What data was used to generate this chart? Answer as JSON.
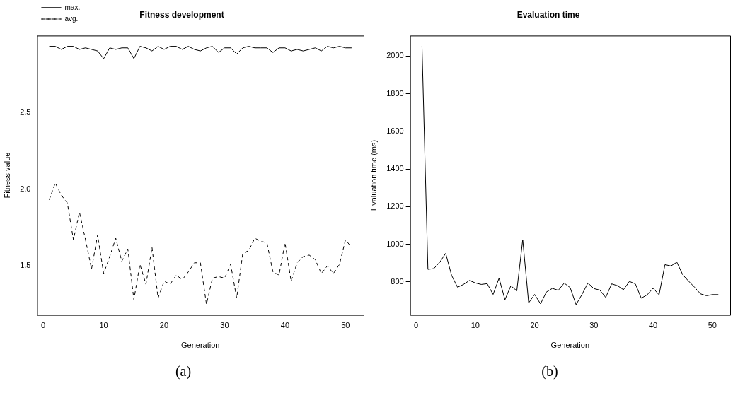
{
  "chart_data": [
    {
      "type": "line",
      "title": "Fitness development",
      "xlabel": "Generation",
      "ylabel": "Fitness value",
      "annotations": [
        "(a)"
      ],
      "x": [
        1,
        2,
        3,
        4,
        5,
        6,
        7,
        8,
        9,
        10,
        11,
        12,
        13,
        14,
        15,
        16,
        17,
        18,
        19,
        20,
        21,
        22,
        23,
        24,
        25,
        26,
        27,
        28,
        29,
        30,
        31,
        32,
        33,
        34,
        35,
        36,
        37,
        38,
        39,
        40,
        41,
        42,
        43,
        44,
        45,
        46,
        47,
        48,
        49,
        50,
        51
      ],
      "series": [
        {
          "name": "max.",
          "color": "#000000",
          "line_style": "solid",
          "values": [
            2.93,
            2.93,
            2.91,
            2.93,
            2.93,
            2.91,
            2.92,
            2.91,
            2.9,
            2.85,
            2.92,
            2.91,
            2.92,
            2.92,
            2.85,
            2.93,
            2.92,
            2.9,
            2.93,
            2.91,
            2.93,
            2.93,
            2.91,
            2.93,
            2.91,
            2.9,
            2.92,
            2.93,
            2.89,
            2.92,
            2.92,
            2.88,
            2.92,
            2.93,
            2.92,
            2.92,
            2.92,
            2.89,
            2.92,
            2.92,
            2.9,
            2.91,
            2.9,
            2.91,
            2.92,
            2.9,
            2.93,
            2.92,
            2.93,
            2.92,
            2.92
          ]
        },
        {
          "name": "avg.",
          "color": "#000000",
          "line_style": "dashed",
          "values": [
            1.93,
            2.04,
            1.96,
            1.91,
            1.67,
            1.85,
            1.67,
            1.48,
            1.7,
            1.45,
            1.56,
            1.68,
            1.53,
            1.61,
            1.28,
            1.51,
            1.38,
            1.62,
            1.29,
            1.4,
            1.38,
            1.44,
            1.41,
            1.46,
            1.52,
            1.52,
            1.25,
            1.42,
            1.43,
            1.42,
            1.51,
            1.29,
            1.58,
            1.6,
            1.68,
            1.66,
            1.65,
            1.46,
            1.44,
            1.65,
            1.4,
            1.52,
            1.56,
            1.57,
            1.54,
            1.45,
            1.5,
            1.45,
            1.51,
            1.67,
            1.62
          ]
        }
      ],
      "xlim": [
        -1,
        53
      ],
      "xticks": [
        0,
        10,
        20,
        30,
        40,
        50
      ],
      "ylim": [
        1.18,
        3.0
      ],
      "yticks": [
        {
          "value": 1.5,
          "label": "1.5"
        },
        {
          "value": 2,
          "label": "2.0"
        },
        {
          "value": 2.5,
          "label": "2.5"
        }
      ],
      "legend": "top left",
      "grid": false,
      "marker": "none"
    },
    {
      "type": "line",
      "title": "Evaluation time",
      "xlabel": "Generation",
      "ylabel": "Evaluation time (ms)",
      "annotations": [
        "(b)"
      ],
      "x": [
        1,
        2,
        3,
        4,
        5,
        6,
        7,
        8,
        9,
        10,
        11,
        12,
        13,
        14,
        15,
        16,
        17,
        18,
        19,
        20,
        21,
        22,
        23,
        24,
        25,
        26,
        27,
        28,
        29,
        30,
        31,
        32,
        33,
        34,
        35,
        36,
        37,
        38,
        39,
        40,
        41,
        42,
        43,
        44,
        45,
        46,
        47,
        48,
        49,
        50,
        51
      ],
      "series": [
        {
          "color": "#000000",
          "line_style": "solid",
          "values": [
            2053,
            867,
            871,
            905,
            952,
            835,
            772,
            787,
            808,
            795,
            787,
            791,
            734,
            820,
            706,
            780,
            753,
            1025,
            689,
            734,
            684,
            747,
            766,
            756,
            794,
            770,
            680,
            734,
            795,
            765,
            757,
            718,
            790,
            780,
            759,
            803,
            790,
            714,
            732,
            767,
            732,
            892,
            885,
            905,
            838,
            804,
            772,
            737,
            727,
            733,
            733
          ]
        }
      ],
      "xlim": [
        -1,
        53
      ],
      "xticks": [
        0,
        10,
        20,
        30,
        40,
        50
      ],
      "ylim": [
        625,
        2108
      ],
      "yticks": [
        800,
        1000,
        1200,
        1400,
        1600,
        1800,
        2000
      ],
      "legend": false,
      "grid": false,
      "marker": "none"
    }
  ]
}
